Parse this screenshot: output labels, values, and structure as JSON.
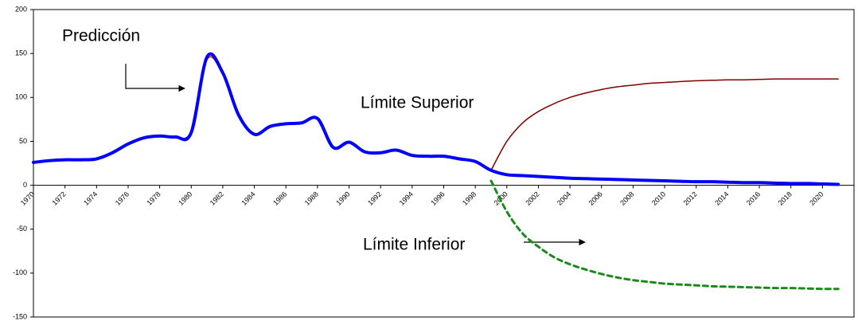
{
  "chart_data": {
    "type": "line",
    "x": [
      1970,
      1971,
      1972,
      1973,
      1974,
      1975,
      1976,
      1977,
      1978,
      1979,
      1980,
      1981,
      1982,
      1983,
      1984,
      1985,
      1986,
      1987,
      1988,
      1989,
      1990,
      1991,
      1992,
      1993,
      1994,
      1995,
      1996,
      1997,
      1998,
      1999,
      2000,
      2001,
      2002,
      2003,
      2004,
      2005,
      2006,
      2007,
      2008,
      2009,
      2010,
      2011,
      2012,
      2013,
      2014,
      2015,
      2016,
      2017,
      2018,
      2019,
      2020,
      2021
    ],
    "series": [
      {
        "color": "#0000ff",
        "width": 4,
        "dashed": false,
        "values": [
          26,
          28,
          29,
          29,
          30,
          37,
          47,
          54,
          56,
          55,
          60,
          146,
          128,
          80,
          58,
          67,
          70,
          71,
          76,
          43,
          49,
          38,
          37,
          40,
          34,
          33,
          33,
          30,
          27,
          17,
          12,
          11,
          10,
          9,
          8,
          7.5,
          7,
          6.5,
          6,
          5.5,
          5,
          4.5,
          4,
          4,
          3.5,
          3,
          3,
          2.5,
          2,
          2,
          1.5,
          1
        ]
      },
      {
        "color": "#9b1c1c",
        "width": 1.5,
        "dashed": false,
        "values": [
          26,
          28,
          29,
          29,
          30,
          37,
          47,
          54,
          56,
          55,
          62,
          143,
          126,
          82,
          58,
          67,
          70,
          71,
          75,
          44,
          49,
          38,
          37,
          40,
          34,
          33,
          33,
          30,
          27,
          17,
          null,
          null,
          null,
          null,
          null,
          null,
          null,
          null,
          null,
          null,
          null,
          null,
          null,
          null,
          null,
          null,
          null,
          null,
          null,
          null,
          null,
          null
        ]
      },
      {
        "color": "#800000",
        "width": 1.5,
        "dashed": false,
        "values": [
          null,
          null,
          null,
          null,
          null,
          null,
          null,
          null,
          null,
          null,
          null,
          null,
          null,
          null,
          null,
          null,
          null,
          null,
          null,
          null,
          null,
          null,
          null,
          null,
          null,
          null,
          null,
          null,
          null,
          17,
          50,
          71,
          84,
          93,
          100,
          105,
          109,
          112,
          114,
          116,
          117,
          118,
          119,
          119.5,
          120,
          120,
          120.5,
          121,
          121,
          121,
          121,
          121
        ]
      },
      {
        "color": "#1a8a1a",
        "width": 3,
        "dashed": true,
        "values": [
          null,
          null,
          null,
          null,
          null,
          null,
          null,
          null,
          null,
          null,
          null,
          null,
          null,
          null,
          null,
          null,
          null,
          null,
          null,
          null,
          null,
          null,
          null,
          null,
          null,
          null,
          null,
          null,
          null,
          5,
          -30,
          -55,
          -70,
          -82,
          -90,
          -96,
          -101,
          -105,
          -108,
          -110,
          -112,
          -113,
          -114,
          -115,
          -115.5,
          -116,
          -116.5,
          -117,
          -117,
          -117.5,
          -118,
          -118
        ]
      }
    ],
    "xlim": [
      1970,
      2022
    ],
    "xticks": [
      1970,
      1972,
      1974,
      1976,
      1978,
      1980,
      1982,
      1984,
      1986,
      1988,
      1990,
      1992,
      1994,
      1996,
      1998,
      2000,
      2002,
      2004,
      2006,
      2008,
      2010,
      2012,
      2014,
      2016,
      2018,
      2020
    ],
    "ylim": [
      -150,
      200
    ],
    "yticks": [
      -150,
      -100,
      -50,
      0,
      50,
      100,
      150,
      200
    ],
    "annotations": [
      "Predicción",
      "Límite Superior",
      "Límite Inferior"
    ]
  }
}
